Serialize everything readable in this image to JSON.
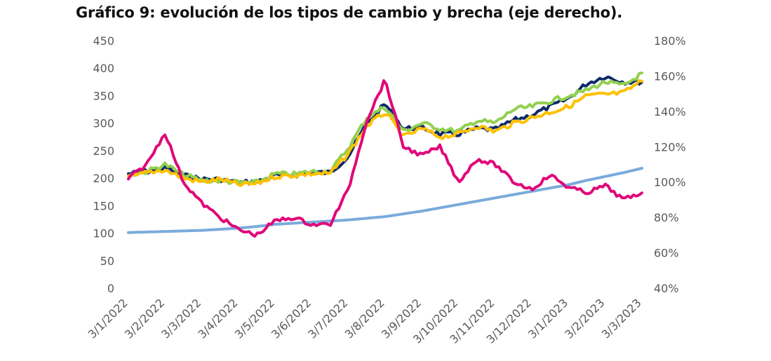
{
  "chart_data": {
    "type": "line",
    "title": "Gráfico 9: evolución de los tipos de cambio y brecha (eje derecho).",
    "x_ticks": [
      "3/1/2022",
      "3/2/2022",
      "3/3/2022",
      "3/4/2022",
      "3/5/2022",
      "3/6/2022",
      "3/7/2022",
      "3/8/2022",
      "3/9/2022",
      "3/10/2022",
      "3/11/2022",
      "3/12/2022",
      "3/1/2023",
      "3/2/2023",
      "3/3/2023"
    ],
    "y_left": {
      "min": 0,
      "max": 450,
      "ticks": [
        "0",
        "50",
        "100",
        "150",
        "200",
        "250",
        "300",
        "350",
        "400",
        "450"
      ]
    },
    "y_right": {
      "min": 40,
      "max": 180,
      "ticks": [
        "40%",
        "60%",
        "80%",
        "100%",
        "120%",
        "140%",
        "160%",
        "180%"
      ]
    },
    "grid": false,
    "legend": "none",
    "x": [
      0,
      0.5,
      1,
      1.5,
      2,
      2.5,
      3,
      3.5,
      4,
      4.5,
      5,
      5.5,
      6,
      6.5,
      7,
      7.5,
      8,
      8.5,
      9,
      9.5,
      10,
      10.5,
      11,
      11.5,
      12,
      12.5,
      13,
      13.5,
      14
    ],
    "series": [
      {
        "axis": "left",
        "color": "#0d2a6b",
        "values": [
          208,
          212,
          218,
          205,
          198,
          198,
          192,
          193,
          205,
          205,
          210,
          210,
          240,
          300,
          335,
          290,
          292,
          280,
          280,
          290,
          288,
          305,
          315,
          330,
          345,
          372,
          385,
          375,
          375
        ]
      },
      {
        "axis": "left",
        "color": "#92d050",
        "values": [
          205,
          212,
          225,
          206,
          196,
          195,
          192,
          192,
          208,
          207,
          212,
          212,
          255,
          310,
          330,
          285,
          300,
          290,
          285,
          305,
          300,
          325,
          330,
          340,
          350,
          360,
          375,
          368,
          390
        ]
      },
      {
        "axis": "left",
        "color": "#ffc000",
        "values": [
          200,
          210,
          215,
          200,
          193,
          198,
          188,
          190,
          203,
          205,
          208,
          208,
          245,
          295,
          320,
          275,
          290,
          275,
          280,
          295,
          285,
          300,
          310,
          320,
          330,
          350,
          352,
          355,
          377
        ]
      },
      {
        "axis": "left",
        "color": "#7aabdc",
        "values": [
          101,
          102,
          103,
          104,
          105,
          107,
          109,
          112,
          116,
          118,
          120,
          122,
          124,
          127,
          130,
          135,
          140,
          146,
          152,
          158,
          164,
          170,
          176,
          182,
          188,
          196,
          203,
          210,
          218
        ]
      },
      {
        "axis": "right",
        "color": "#e0087a",
        "values": [
          102,
          110,
          128,
          100,
          88,
          80,
          73,
          70,
          78,
          80,
          76,
          76,
          96,
          135,
          158,
          120,
          115,
          120,
          100,
          113,
          110,
          100,
          96,
          104,
          97,
          94,
          98,
          90,
          94
        ]
      }
    ]
  }
}
